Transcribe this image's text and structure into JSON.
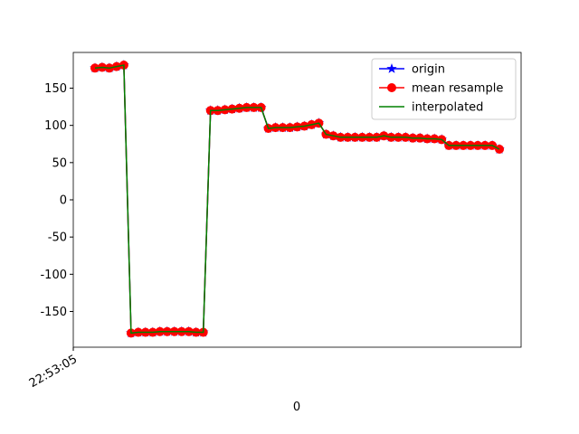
{
  "chart_data": {
    "type": "line",
    "xlabel": "0",
    "x": [
      3,
      4,
      5,
      6,
      7,
      8,
      9,
      10,
      11,
      12,
      13,
      14,
      15,
      16,
      17,
      18,
      19,
      20,
      21,
      22,
      23,
      24,
      25,
      26,
      27,
      28,
      29,
      30,
      31,
      32,
      33,
      34,
      35,
      36,
      37,
      38,
      39,
      40,
      41,
      42,
      43,
      44,
      45,
      46,
      47,
      48,
      49,
      50,
      51,
      52,
      53,
      54,
      55,
      56,
      57,
      58,
      59
    ],
    "xlim": [
      0,
      62
    ],
    "xticks": [
      {
        "value": 0,
        "label": "22:53:05"
      }
    ],
    "ylim": [
      -198,
      198
    ],
    "yticks": [
      -150,
      -100,
      -50,
      0,
      50,
      100,
      150
    ],
    "legend": "upper right",
    "series": [
      {
        "name": "origin",
        "color": "#0000ff",
        "marker": "star",
        "values": [
          177,
          178,
          177,
          179,
          181,
          -179,
          -178,
          -178,
          -178,
          -177,
          -177,
          -177,
          -177,
          -177,
          -178,
          -178,
          120,
          120,
          121,
          122,
          123,
          124,
          124,
          124,
          96,
          97,
          97,
          97,
          98,
          99,
          101,
          103,
          88,
          86,
          84,
          84,
          84,
          84,
          84,
          84,
          86,
          84,
          84,
          84,
          83,
          83,
          82,
          82,
          81,
          73,
          73,
          73,
          73,
          73,
          73,
          73,
          68
        ]
      },
      {
        "name": "mean resample",
        "color": "#ff0000",
        "marker": "circle",
        "values": [
          177,
          178,
          177,
          179,
          181,
          -179,
          -178,
          -178,
          -178,
          -177,
          -177,
          -177,
          -177,
          -177,
          -178,
          -178,
          120,
          120,
          121,
          122,
          123,
          124,
          124,
          124,
          96,
          97,
          97,
          97,
          98,
          99,
          101,
          103,
          88,
          86,
          84,
          84,
          84,
          84,
          84,
          84,
          86,
          84,
          84,
          84,
          83,
          83,
          82,
          82,
          81,
          73,
          73,
          73,
          73,
          73,
          73,
          73,
          68
        ]
      },
      {
        "name": "interpolated",
        "color": "#008000",
        "values": [
          177,
          178,
          177,
          179,
          181,
          -179,
          -178,
          -178,
          -178,
          -177,
          -177,
          -177,
          -177,
          -177,
          -178,
          -178,
          120,
          120,
          121,
          122,
          123,
          124,
          124,
          124,
          96,
          97,
          97,
          97,
          98,
          99,
          101,
          103,
          88,
          86,
          84,
          84,
          84,
          84,
          84,
          84,
          86,
          84,
          84,
          84,
          83,
          83,
          82,
          82,
          81,
          73,
          73,
          73,
          73,
          73,
          73,
          73,
          68
        ]
      }
    ]
  }
}
